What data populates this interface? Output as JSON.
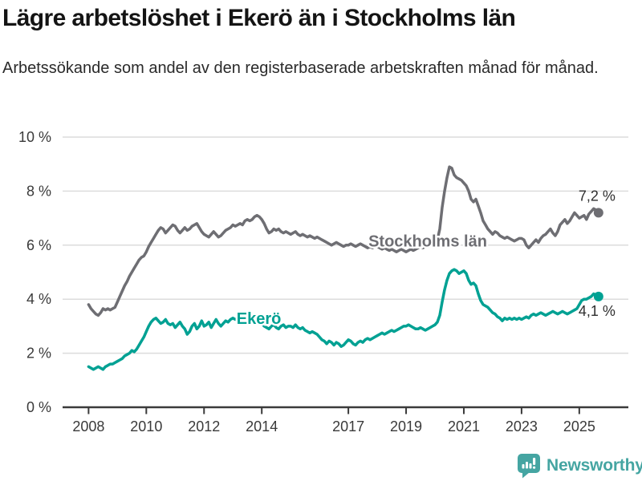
{
  "header": {
    "title": "Lägre arbetslöshet i Ekerö än i Stockholms län",
    "subtitle": "Arbetssökande som andel av den registerbaserade arbetskraften månad för månad."
  },
  "footer": {
    "brand": "Newsworthy",
    "brand_color": "#45a5a2"
  },
  "colors": {
    "background": "#ffffff",
    "grid": "#dcdcdc",
    "axis": "#3a3a3a",
    "annotation": "#2f2f2f"
  },
  "chart_data": {
    "type": "line",
    "title": "Lägre arbetslöshet i Ekerö än i Stockholms län",
    "subtitle": "Arbetssökande som andel av den registerbaserade arbetskraften månad för månad.",
    "xlabel": "",
    "ylabel": "",
    "unit": "%",
    "frequency": "monthly",
    "x_start_year": 2008,
    "x_end": "2025-09",
    "xlim": [
      2007.1,
      2026.7
    ],
    "ylim": [
      0,
      10
    ],
    "grid": "horizontal",
    "legend_position": "inline-labels",
    "x_ticks": [
      {
        "year": 2008,
        "label": "2008"
      },
      {
        "year": 2010,
        "label": "2010"
      },
      {
        "year": 2012,
        "label": "2012"
      },
      {
        "year": 2014,
        "label": "2014"
      },
      {
        "year": 2017,
        "label": "2017"
      },
      {
        "year": 2019,
        "label": "2019"
      },
      {
        "year": 2021,
        "label": "2021"
      },
      {
        "year": 2023,
        "label": "2023"
      },
      {
        "year": 2025,
        "label": "2025"
      }
    ],
    "y_ticks": [
      {
        "value": 0,
        "label": "0 %"
      },
      {
        "value": 2,
        "label": "2 %"
      },
      {
        "value": 4,
        "label": "4 %"
      },
      {
        "value": 6,
        "label": "6 %"
      },
      {
        "value": 8,
        "label": "8 %"
      },
      {
        "value": 10,
        "label": "10 %"
      }
    ],
    "series": [
      {
        "name": "Stockholms län",
        "color": "#6e6e73",
        "end_label": "7,2 %",
        "end_value": 7.2,
        "end_dot": true,
        "end_label_pos": "above",
        "inline_label": {
          "text": "Stockholms län",
          "x": 2019.75,
          "y": 6.15
        },
        "values": [
          3.8,
          3.65,
          3.55,
          3.45,
          3.4,
          3.5,
          3.65,
          3.6,
          3.65,
          3.6,
          3.65,
          3.7,
          3.9,
          4.1,
          4.3,
          4.5,
          4.65,
          4.85,
          5.0,
          5.15,
          5.3,
          5.45,
          5.55,
          5.6,
          5.75,
          5.95,
          6.1,
          6.25,
          6.4,
          6.55,
          6.65,
          6.6,
          6.45,
          6.55,
          6.65,
          6.75,
          6.7,
          6.55,
          6.45,
          6.55,
          6.65,
          6.55,
          6.6,
          6.7,
          6.75,
          6.8,
          6.65,
          6.5,
          6.4,
          6.35,
          6.3,
          6.4,
          6.5,
          6.4,
          6.3,
          6.35,
          6.45,
          6.55,
          6.6,
          6.65,
          6.75,
          6.7,
          6.75,
          6.8,
          6.75,
          6.9,
          6.95,
          6.9,
          6.95,
          7.05,
          7.1,
          7.05,
          6.95,
          6.8,
          6.6,
          6.45,
          6.5,
          6.6,
          6.55,
          6.6,
          6.5,
          6.45,
          6.5,
          6.45,
          6.4,
          6.45,
          6.5,
          6.4,
          6.35,
          6.4,
          6.35,
          6.3,
          6.35,
          6.3,
          6.25,
          6.3,
          6.25,
          6.2,
          6.15,
          6.1,
          6.05,
          6.0,
          6.05,
          6.1,
          6.05,
          6.0,
          5.95,
          6.0,
          6.0,
          6.05,
          6.0,
          5.95,
          6.0,
          6.05,
          6.0,
          5.95,
          5.9,
          5.95,
          5.9,
          5.95,
          5.95,
          5.9,
          5.85,
          5.9,
          5.85,
          5.8,
          5.85,
          5.8,
          5.75,
          5.8,
          5.85,
          5.8,
          5.75,
          5.8,
          5.85,
          5.8,
          5.85,
          5.9,
          5.95,
          5.9,
          5.95,
          6.0,
          6.05,
          6.1,
          6.1,
          6.2,
          6.6,
          7.4,
          8.0,
          8.5,
          8.9,
          8.85,
          8.6,
          8.5,
          8.45,
          8.4,
          8.3,
          8.2,
          8.0,
          7.7,
          7.6,
          7.7,
          7.45,
          7.2,
          6.9,
          6.75,
          6.6,
          6.5,
          6.4,
          6.5,
          6.45,
          6.35,
          6.3,
          6.25,
          6.3,
          6.25,
          6.2,
          6.15,
          6.2,
          6.25,
          6.25,
          6.2,
          6.0,
          5.9,
          6.0,
          6.1,
          6.2,
          6.1,
          6.25,
          6.35,
          6.4,
          6.5,
          6.6,
          6.45,
          6.35,
          6.5,
          6.75,
          6.85,
          6.95,
          6.8,
          6.9,
          7.05,
          7.2,
          7.1,
          7.0,
          7.05,
          7.1,
          6.95,
          7.15,
          7.25,
          7.35,
          7.3,
          7.2
        ]
      },
      {
        "name": "Ekerö",
        "color": "#00a193",
        "end_label": "4,1 %",
        "end_value": 4.1,
        "end_dot": true,
        "end_label_pos": "below",
        "inline_label": {
          "text": "Ekerö",
          "x": 2013.9,
          "y": 3.3
        },
        "values": [
          1.5,
          1.45,
          1.4,
          1.45,
          1.5,
          1.45,
          1.4,
          1.5,
          1.55,
          1.6,
          1.6,
          1.65,
          1.7,
          1.75,
          1.8,
          1.9,
          1.95,
          2.0,
          2.1,
          2.05,
          2.15,
          2.3,
          2.45,
          2.6,
          2.8,
          3.0,
          3.15,
          3.25,
          3.3,
          3.2,
          3.1,
          3.15,
          3.25,
          3.1,
          3.05,
          3.1,
          2.95,
          3.05,
          3.15,
          3.0,
          2.9,
          2.7,
          2.8,
          3.0,
          3.1,
          2.9,
          3.0,
          3.2,
          3.0,
          3.05,
          3.15,
          2.95,
          3.1,
          3.25,
          3.1,
          3.0,
          3.1,
          3.2,
          3.15,
          3.25,
          3.3,
          3.25,
          3.3,
          3.25,
          3.2,
          3.3,
          3.25,
          3.2,
          3.25,
          3.3,
          3.2,
          3.15,
          3.1,
          3.0,
          2.95,
          2.9,
          3.0,
          3.05,
          2.95,
          2.9,
          3.0,
          3.05,
          2.95,
          3.0,
          3.0,
          2.95,
          3.05,
          2.95,
          2.9,
          2.95,
          2.85,
          2.8,
          2.75,
          2.8,
          2.75,
          2.7,
          2.6,
          2.5,
          2.45,
          2.35,
          2.45,
          2.4,
          2.3,
          2.4,
          2.35,
          2.25,
          2.3,
          2.4,
          2.5,
          2.45,
          2.35,
          2.3,
          2.4,
          2.45,
          2.4,
          2.5,
          2.55,
          2.5,
          2.55,
          2.6,
          2.65,
          2.7,
          2.75,
          2.7,
          2.75,
          2.8,
          2.85,
          2.8,
          2.85,
          2.9,
          2.95,
          3.0,
          3.0,
          3.05,
          3.0,
          2.95,
          2.9,
          2.9,
          2.95,
          2.9,
          2.85,
          2.9,
          2.95,
          3.0,
          3.05,
          3.15,
          3.4,
          3.9,
          4.35,
          4.7,
          4.95,
          5.05,
          5.1,
          5.05,
          4.95,
          5.0,
          5.05,
          4.95,
          4.7,
          4.55,
          4.6,
          4.5,
          4.2,
          3.95,
          3.8,
          3.75,
          3.7,
          3.6,
          3.5,
          3.45,
          3.35,
          3.3,
          3.2,
          3.3,
          3.25,
          3.3,
          3.25,
          3.3,
          3.25,
          3.3,
          3.25,
          3.3,
          3.35,
          3.3,
          3.4,
          3.45,
          3.4,
          3.45,
          3.5,
          3.45,
          3.4,
          3.45,
          3.5,
          3.55,
          3.5,
          3.45,
          3.5,
          3.55,
          3.5,
          3.45,
          3.5,
          3.55,
          3.6,
          3.65,
          3.8,
          3.95,
          4.0,
          4.0,
          4.05,
          4.1,
          4.2,
          4.15,
          4.1
        ]
      }
    ]
  }
}
